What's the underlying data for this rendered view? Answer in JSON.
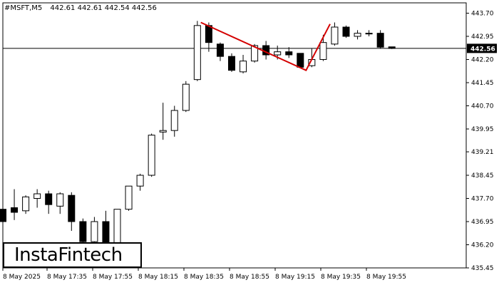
{
  "header": {
    "symbol": "#MSFT,M5",
    "ohlc": "442.61 442.61 442.54 442.56"
  },
  "logo": {
    "text": "InstaFintech"
  },
  "colors": {
    "pattern": "#d40000",
    "bull": "#ffffff",
    "bear": "#000000",
    "priceline": "#000000"
  },
  "chart_data": {
    "type": "candlestick",
    "ylim": [
      435.45,
      443.85
    ],
    "y_ticks": [
      "443.70",
      "442.95",
      "442.20",
      "441.45",
      "440.70",
      "439.95",
      "439.21",
      "438.45",
      "437.70",
      "436.95",
      "436.20",
      "435.45"
    ],
    "x_ticks": [
      "8 May 2025",
      "8 May 17:35",
      "8 May 17:55",
      "8 May 18:15",
      "8 May 18:35",
      "8 May 18:55",
      "8 May 19:15",
      "8 May 19:35",
      "8 May 19:55"
    ],
    "current_price": "442.56",
    "candles": [
      {
        "o": 437.35,
        "h": 437.5,
        "l": 436.95,
        "c": 436.95
      },
      {
        "o": 437.4,
        "h": 438.0,
        "l": 437.0,
        "c": 437.25
      },
      {
        "o": 437.3,
        "h": 437.8,
        "l": 437.2,
        "c": 437.75
      },
      {
        "o": 437.7,
        "h": 438.0,
        "l": 437.4,
        "c": 437.85
      },
      {
        "o": 437.85,
        "h": 437.95,
        "l": 437.2,
        "c": 437.5
      },
      {
        "o": 437.45,
        "h": 437.9,
        "l": 437.2,
        "c": 437.85
      },
      {
        "o": 437.8,
        "h": 437.9,
        "l": 436.65,
        "c": 436.95
      },
      {
        "o": 436.95,
        "h": 437.05,
        "l": 436.2,
        "c": 436.3
      },
      {
        "o": 436.3,
        "h": 437.1,
        "l": 436.1,
        "c": 436.95
      },
      {
        "o": 436.95,
        "h": 437.3,
        "l": 435.9,
        "c": 436.2
      },
      {
        "o": 436.2,
        "h": 437.35,
        "l": 436.1,
        "c": 437.35
      },
      {
        "o": 437.35,
        "h": 438.1,
        "l": 437.3,
        "c": 438.1
      },
      {
        "o": 438.1,
        "h": 438.5,
        "l": 437.95,
        "c": 438.45
      },
      {
        "o": 438.45,
        "h": 439.8,
        "l": 438.4,
        "c": 439.75
      },
      {
        "o": 439.85,
        "h": 440.8,
        "l": 439.6,
        "c": 439.9
      },
      {
        "o": 439.9,
        "h": 440.7,
        "l": 439.7,
        "c": 440.55
      },
      {
        "o": 440.55,
        "h": 441.5,
        "l": 440.5,
        "c": 441.4
      },
      {
        "o": 441.55,
        "h": 443.45,
        "l": 441.5,
        "c": 443.3
      },
      {
        "o": 443.3,
        "h": 443.4,
        "l": 442.45,
        "c": 442.75
      },
      {
        "o": 442.7,
        "h": 442.75,
        "l": 442.15,
        "c": 442.3
      },
      {
        "o": 442.3,
        "h": 442.4,
        "l": 441.8,
        "c": 441.85
      },
      {
        "o": 441.8,
        "h": 442.35,
        "l": 441.75,
        "c": 442.15
      },
      {
        "o": 442.15,
        "h": 442.7,
        "l": 442.1,
        "c": 442.65
      },
      {
        "o": 442.65,
        "h": 442.8,
        "l": 442.2,
        "c": 442.35
      },
      {
        "o": 442.35,
        "h": 442.65,
        "l": 442.2,
        "c": 442.45
      },
      {
        "o": 442.45,
        "h": 442.6,
        "l": 442.25,
        "c": 442.35
      },
      {
        "o": 442.4,
        "h": 442.4,
        "l": 441.95,
        "c": 441.95
      },
      {
        "o": 442.0,
        "h": 442.55,
        "l": 441.95,
        "c": 442.2
      },
      {
        "o": 442.2,
        "h": 443.0,
        "l": 442.15,
        "c": 442.75
      },
      {
        "o": 442.7,
        "h": 443.4,
        "l": 442.65,
        "c": 443.25
      },
      {
        "o": 443.25,
        "h": 443.3,
        "l": 442.9,
        "c": 442.95
      },
      {
        "o": 442.95,
        "h": 443.15,
        "l": 442.85,
        "c": 443.05
      },
      {
        "o": 443.05,
        "h": 443.15,
        "l": 442.95,
        "c": 443.05
      },
      {
        "o": 443.05,
        "h": 443.15,
        "l": 442.55,
        "c": 442.6
      },
      {
        "o": 442.61,
        "h": 442.61,
        "l": 442.54,
        "c": 442.56
      }
    ],
    "pattern_line": [
      {
        "i": 17.3,
        "p": 443.4
      },
      {
        "i": 26.5,
        "p": 441.85
      },
      {
        "i": 28.6,
        "p": 443.35
      }
    ]
  }
}
